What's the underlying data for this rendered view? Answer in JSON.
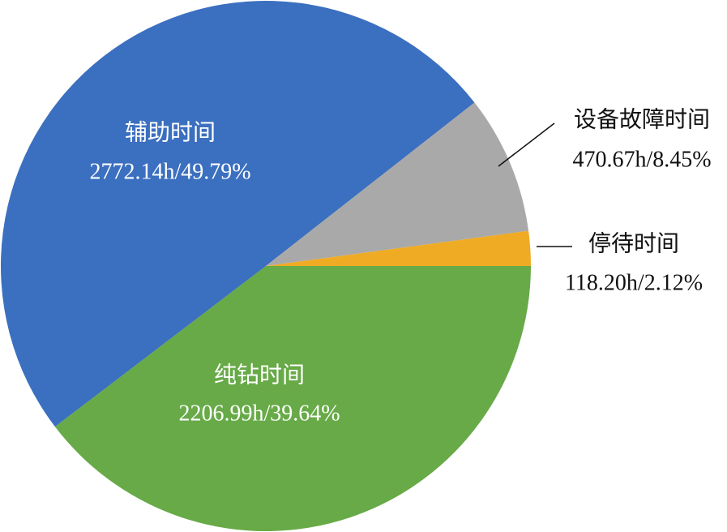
{
  "chart_data": {
    "type": "pie",
    "categories": [
      "纯钻时间",
      "辅助时间",
      "设备故障时间",
      "停待时间"
    ],
    "values": [
      39.64,
      49.79,
      8.45,
      2.12
    ],
    "value_labels": [
      "2206.99h/39.64%",
      "2772.14h/49.79%",
      "470.67h/8.45%",
      "118.20h/2.12%"
    ],
    "colors": [
      "#67aa47",
      "#3b6fbf",
      "#a9a9a9",
      "#efab23"
    ]
  }
}
